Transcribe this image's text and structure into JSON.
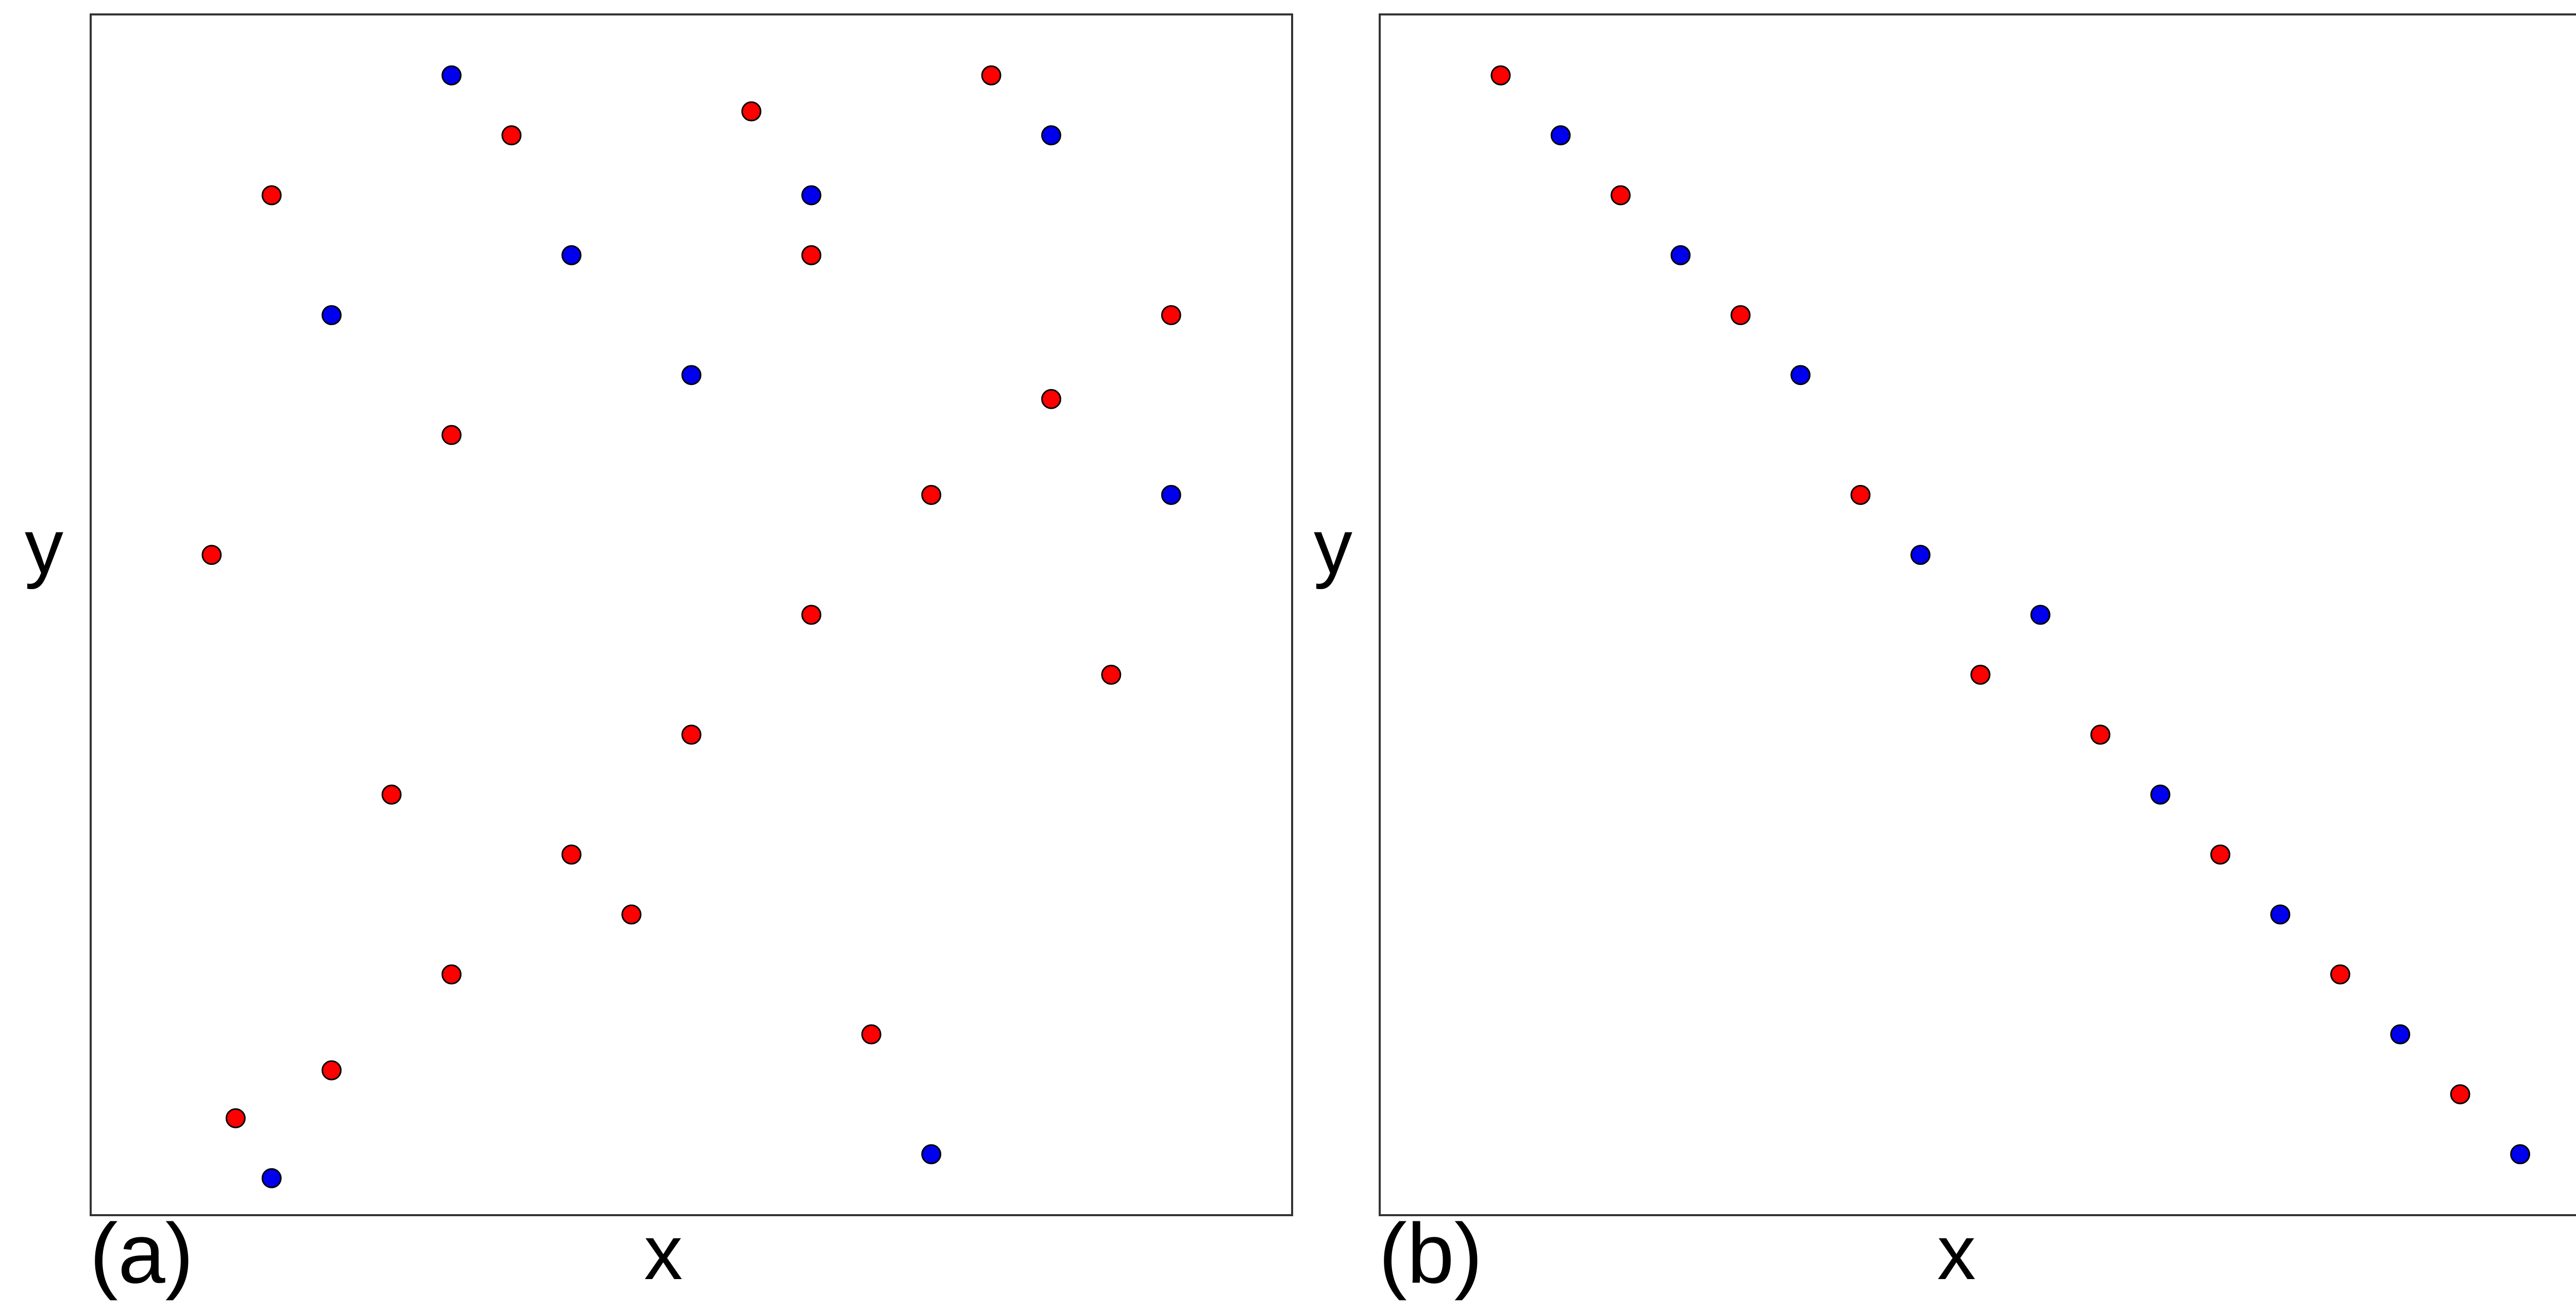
{
  "colors": {
    "red": "#ff0000",
    "blue": "#0000ee",
    "edge": "#000000"
  },
  "chart_data": [
    {
      "type": "scatter",
      "panel_label": "(a)",
      "xlabel": "x",
      "ylabel": "y",
      "xlim": [
        0,
        1
      ],
      "ylim": [
        0,
        1
      ],
      "grid": false,
      "legend": "none",
      "series": [
        {
          "color": "red",
          "x": [
            0.12,
            0.2,
            0.3,
            0.4,
            0.5,
            0.6,
            0.7,
            0.8,
            0.9,
            0.15,
            0.35,
            0.55,
            0.75,
            0.1,
            0.25,
            0.45,
            0.65,
            0.85,
            0.3,
            0.6
          ],
          "y": [
            0.08,
            0.12,
            0.2,
            0.3,
            0.4,
            0.5,
            0.6,
            0.68,
            0.75,
            0.85,
            0.9,
            0.92,
            0.95,
            0.55,
            0.35,
            0.25,
            0.15,
            0.45,
            0.65,
            0.8
          ]
        },
        {
          "color": "blue",
          "x": [
            0.2,
            0.4,
            0.6,
            0.8,
            0.3,
            0.5,
            0.7,
            0.15,
            0.9
          ],
          "y": [
            0.75,
            0.8,
            0.85,
            0.9,
            0.95,
            0.7,
            0.05,
            0.03,
            0.6
          ]
        }
      ]
    },
    {
      "type": "scatter",
      "panel_label": "(b)",
      "xlabel": "x",
      "ylabel": "y",
      "xlim": [
        0,
        1
      ],
      "ylim": [
        0,
        1
      ],
      "grid": false,
      "legend": "none",
      "series": [
        {
          "color": "red",
          "x": [
            0.1,
            0.2,
            0.3,
            0.4,
            0.5,
            0.6,
            0.7,
            0.8,
            0.9
          ],
          "y": [
            0.95,
            0.85,
            0.75,
            0.6,
            0.45,
            0.4,
            0.3,
            0.2,
            0.1
          ]
        },
        {
          "color": "blue",
          "x": [
            0.15,
            0.25,
            0.35,
            0.45,
            0.55,
            0.65,
            0.75,
            0.85,
            0.95
          ],
          "y": [
            0.9,
            0.8,
            0.7,
            0.55,
            0.5,
            0.35,
            0.25,
            0.15,
            0.05
          ]
        }
      ]
    }
  ]
}
